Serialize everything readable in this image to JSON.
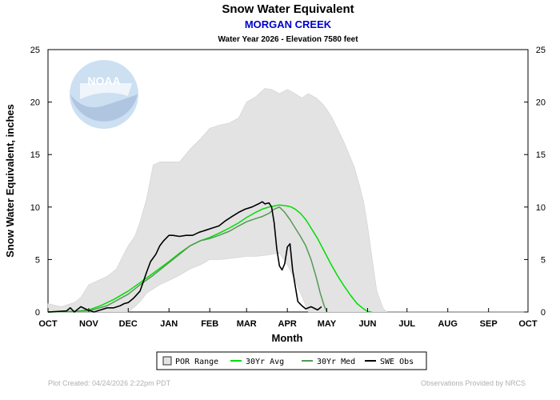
{
  "chart_data": {
    "type": "area",
    "title": "Snow Water Equivalent",
    "site_name": "MORGAN CREEK",
    "subtitle": "Water Year 2026 -  Elevation 7580 feet",
    "xlabel": "Month",
    "ylabel": "Snow Water Equivalent, inches",
    "ylim": [
      0,
      25
    ],
    "yticks": [
      0,
      5,
      10,
      15,
      20,
      25
    ],
    "xlim": [
      0,
      365
    ],
    "categories": [
      "OCT",
      "NOV",
      "DEC",
      "JAN",
      "FEB",
      "MAR",
      "APR",
      "MAY",
      "JUN",
      "JUL",
      "AUG",
      "SEP",
      "OCT"
    ],
    "month_start_days": [
      0,
      31,
      61,
      92,
      123,
      151,
      182,
      212,
      243,
      273,
      304,
      335,
      365
    ],
    "grid": false,
    "legend_position": "bottom",
    "colors": {
      "por_range": "#e3e3e3",
      "avg": "#00dd00",
      "med": "#559955",
      "obs": "#000000",
      "site_name": "#0000cc",
      "logo": "#6fa8dc"
    },
    "logo_text": "NOAA",
    "series": [
      {
        "name": "POR Range",
        "kind": "band",
        "x": [
          0,
          10,
          20,
          25,
          31,
          38,
          45,
          52,
          58,
          61,
          66,
          70,
          75,
          80,
          85,
          92,
          100,
          108,
          116,
          123,
          130,
          138,
          145,
          151,
          158,
          165,
          170,
          176,
          182,
          188,
          193,
          198,
          204,
          209,
          212,
          216,
          220,
          225,
          229,
          233,
          237,
          240,
          243,
          246,
          250,
          255,
          258,
          365
        ],
        "upper": [
          0.8,
          0.5,
          0.9,
          1.4,
          2.6,
          3.0,
          3.4,
          4.1,
          5.6,
          6.3,
          7.2,
          8.6,
          10.8,
          14.0,
          14.3,
          14.3,
          14.3,
          15.5,
          16.5,
          17.5,
          17.8,
          18.0,
          18.5,
          20.0,
          20.5,
          21.3,
          21.2,
          20.8,
          21.2,
          20.8,
          20.4,
          20.8,
          20.4,
          19.8,
          19.3,
          18.5,
          17.5,
          16.2,
          15.0,
          13.8,
          12.0,
          10.5,
          8.2,
          5.5,
          2.0,
          0.3,
          0.0,
          0.0
        ],
        "lower": [
          0,
          0,
          0,
          0,
          0,
          0,
          0,
          0,
          0,
          0,
          0.5,
          1.0,
          1.8,
          2.2,
          2.6,
          3.0,
          3.5,
          4.1,
          4.5,
          5.0,
          5.0,
          5.1,
          5.2,
          5.3,
          5.3,
          5.4,
          5.5,
          5.6,
          4.5,
          3.0,
          1.5,
          0.0,
          0,
          0,
          0,
          0,
          0,
          0,
          0,
          0,
          0,
          0,
          0,
          0,
          0,
          0,
          0,
          0
        ]
      },
      {
        "name": "30Yr Avg",
        "kind": "line",
        "x": [
          0,
          20,
          31,
          40,
          50,
          61,
          70,
          80,
          92,
          100,
          108,
          116,
          123,
          130,
          138,
          145,
          151,
          158,
          163,
          168,
          172,
          176,
          182,
          185,
          188,
          192,
          196,
          200,
          205,
          210,
          215,
          220,
          225,
          230,
          235,
          240,
          243,
          246
        ],
        "values": [
          0,
          0.05,
          0.2,
          0.6,
          1.2,
          2.0,
          2.8,
          3.7,
          4.8,
          5.6,
          6.3,
          6.8,
          7.1,
          7.5,
          8.0,
          8.5,
          9.0,
          9.5,
          9.8,
          10.0,
          10.1,
          10.2,
          10.1,
          10.0,
          9.8,
          9.4,
          8.8,
          8.0,
          7.0,
          5.8,
          4.6,
          3.5,
          2.5,
          1.6,
          0.8,
          0.3,
          0.05,
          0
        ]
      },
      {
        "name": "30Yr Med",
        "kind": "line",
        "x": [
          0,
          31,
          45,
          61,
          70,
          80,
          92,
          100,
          108,
          116,
          123,
          130,
          138,
          145,
          151,
          158,
          163,
          168,
          172,
          176,
          180,
          184,
          188,
          192,
          196,
          200,
          204,
          207,
          210,
          212
        ],
        "values": [
          0,
          0.1,
          0.6,
          1.7,
          2.6,
          3.5,
          4.7,
          5.5,
          6.3,
          6.8,
          7.0,
          7.3,
          7.7,
          8.2,
          8.6,
          8.9,
          9.1,
          9.4,
          9.8,
          10.0,
          9.5,
          8.8,
          8.0,
          7.2,
          6.3,
          5.0,
          3.3,
          1.8,
          0.6,
          0
        ]
      },
      {
        "name": "SWE Obs",
        "kind": "line",
        "x": [
          0,
          14,
          17,
          20,
          25,
          30,
          35,
          40,
          45,
          50,
          55,
          58,
          61,
          65,
          70,
          75,
          78,
          82,
          85,
          88,
          92,
          95,
          100,
          105,
          110,
          115,
          120,
          125,
          130,
          135,
          140,
          145,
          150,
          155,
          160,
          163,
          165,
          168,
          170,
          172,
          174,
          176,
          178,
          180,
          182,
          184,
          186,
          188,
          190,
          193,
          196,
          200,
          205,
          208
        ],
        "values": [
          0,
          0.1,
          0.4,
          0.0,
          0.5,
          0.2,
          0.0,
          0.2,
          0.4,
          0.4,
          0.6,
          0.8,
          0.9,
          1.3,
          2.0,
          3.8,
          4.8,
          5.5,
          6.3,
          6.8,
          7.3,
          7.3,
          7.2,
          7.3,
          7.3,
          7.6,
          7.8,
          8.0,
          8.2,
          8.7,
          9.1,
          9.5,
          9.8,
          10.0,
          10.3,
          10.5,
          10.3,
          10.4,
          10.0,
          8.5,
          6.0,
          4.4,
          4.0,
          4.6,
          6.2,
          6.5,
          4.0,
          2.5,
          1.0,
          0.6,
          0.3,
          0.5,
          0.2,
          0.5
        ]
      }
    ],
    "legend": [
      {
        "key": "por",
        "label": "POR Range"
      },
      {
        "key": "avg",
        "label": "30Yr Avg"
      },
      {
        "key": "med",
        "label": "30Yr Med"
      },
      {
        "key": "obs",
        "label": "SWE Obs"
      }
    ],
    "footer_left": "Plot Created: 04/24/2026 2:22pm PDT",
    "footer_right": "Observations Provided by NRCS"
  }
}
